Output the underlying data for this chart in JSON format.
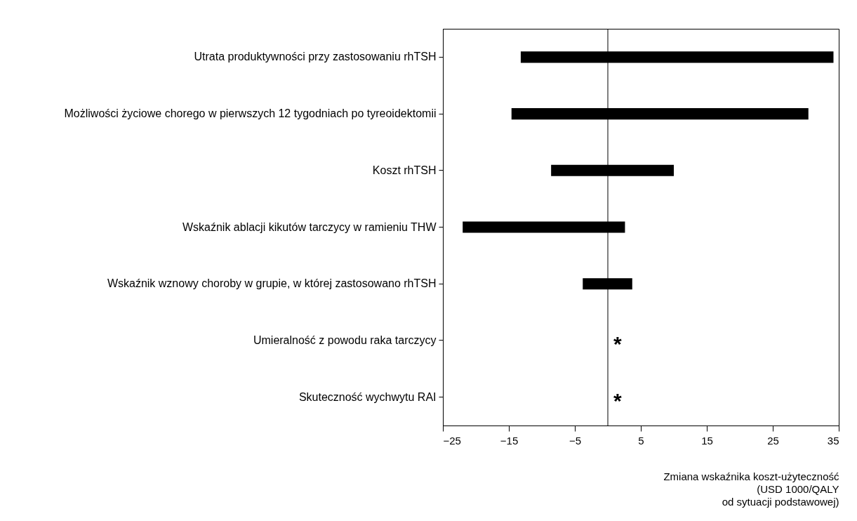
{
  "chart_data": {
    "type": "bar",
    "orientation": "horizontal",
    "categories": [
      "Utrata produktywności przy zastosowaniu rhTSH",
      "Możliwości życiowe chorego w pierwszych 12 tygodniach po tyreoidektomii",
      "Koszt rhTSH",
      "Wskaźnik ablacji kikutów tarczycy w ramieniu THW",
      "Wskaźnik wznowy choroby w grupie, w której zastosowano rhTSH",
      "Umieralność z powodu raka tarczycy",
      "Skuteczność wychwytu RAI"
    ],
    "base": [
      -13.2,
      -14.6,
      -8.6,
      -22,
      -3.8,
      null,
      null
    ],
    "values": [
      47.4,
      45,
      18.6,
      24.6,
      7.5,
      null,
      null
    ],
    "color": "#000000",
    "xlabel": "Zmiana wskaźnika koszt-użyteczność\n(USD 1000/QALY\nod sytuacji podstawowej)",
    "xlim": [
      -25,
      35
    ],
    "xticks": [
      -25,
      -15,
      -5,
      5,
      15,
      25,
      35
    ],
    "ref_lines": [
      {
        "axis": "x",
        "value": 0,
        "color": "#000000"
      }
    ],
    "annotations": [
      "*",
      "*"
    ],
    "grid": false
  }
}
